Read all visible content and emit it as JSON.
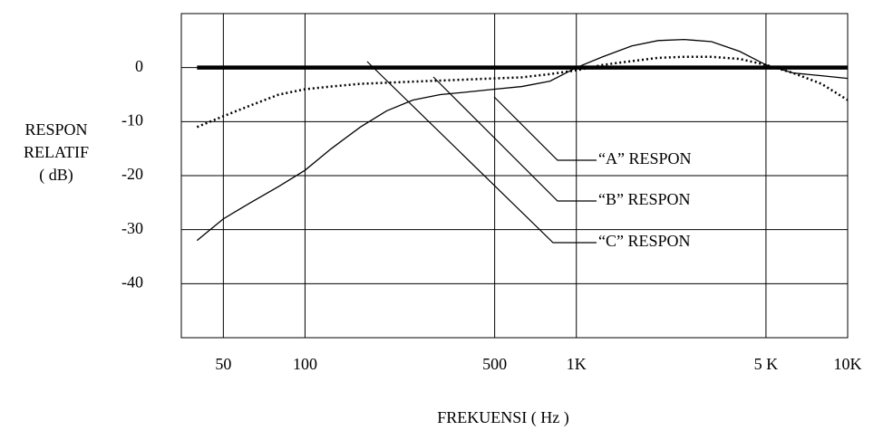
{
  "chart_data": {
    "type": "line",
    "y_label": [
      "RESPON",
      "RELATIF",
      "( dB)"
    ],
    "x_label": "FREKUENSI ( Hz )",
    "xscale": "log",
    "xlim": [
      35,
      10000
    ],
    "xticks": [
      50,
      100,
      500,
      {
        "value": 1000,
        "label": "1K"
      },
      {
        "value": 5000,
        "label": "5 K"
      },
      {
        "value": 10000,
        "label": "10K"
      }
    ],
    "ylim": [
      -50,
      10
    ],
    "yticks": [
      0,
      -10,
      -20,
      -30,
      -40
    ],
    "grid": true,
    "series": [
      {
        "name": "“A” RESPON",
        "color": "#000000",
        "style": "solid",
        "x": [
          40,
          50,
          63,
          80,
          100,
          125,
          160,
          200,
          250,
          315,
          400,
          500,
          630,
          800,
          1000,
          1250,
          1600,
          2000,
          2500,
          3150,
          4000,
          5000,
          6300,
          8000,
          10000
        ],
        "values": [
          -32,
          -28,
          -25,
          -22,
          -19,
          -15,
          -11,
          -8,
          -6,
          -5,
          -4.5,
          -4,
          -3.5,
          -2.5,
          0,
          2,
          4,
          5,
          5.2,
          4.8,
          3,
          0.5,
          -1,
          -1.5,
          -2
        ]
      },
      {
        "name": "“B” RESPON",
        "color": "#000000",
        "style": "dotted",
        "x": [
          40,
          50,
          63,
          80,
          100,
          125,
          160,
          200,
          250,
          315,
          400,
          500,
          630,
          800,
          1000,
          1250,
          1600,
          2000,
          2500,
          3150,
          4000,
          5000,
          6300,
          8000,
          10000
        ],
        "values": [
          -11,
          -9,
          -7,
          -5,
          -4,
          -3.5,
          -3,
          -2.8,
          -2.6,
          -2.4,
          -2.2,
          -2,
          -1.8,
          -1.2,
          -0.5,
          0.5,
          1.2,
          1.8,
          2,
          2,
          1.6,
          0.5,
          -1,
          -3,
          -6
        ]
      },
      {
        "name": "“C” RESPON",
        "color": "#000000",
        "style": "thick",
        "x": [
          40,
          10000
        ],
        "values": [
          0,
          0
        ]
      }
    ]
  }
}
